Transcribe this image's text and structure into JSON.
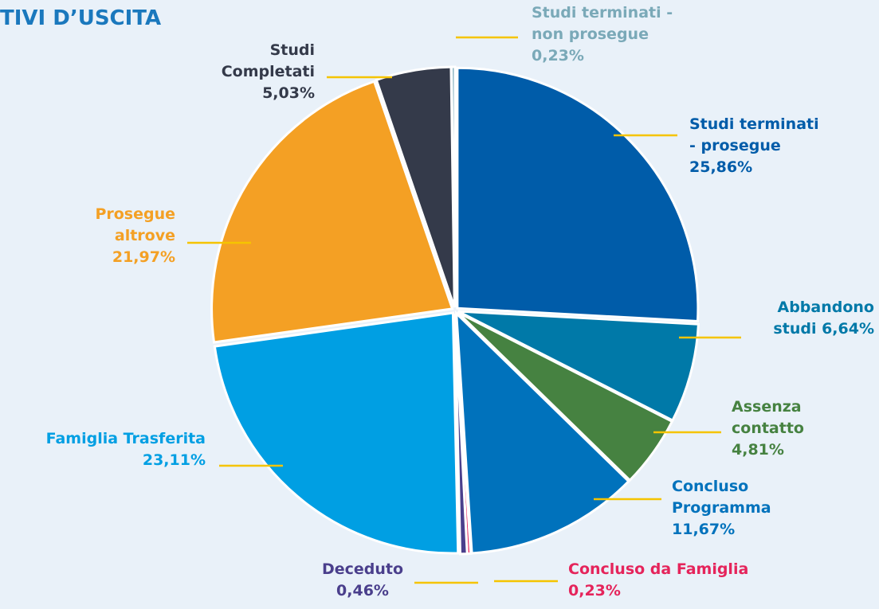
{
  "chart_data": {
    "type": "pie",
    "title": "TIVI D’USCITA",
    "categories": [
      "Studi terminati - prosegue",
      "Abbandono studi",
      "Assenza contatto",
      "Concluso Programma",
      "Concluso da Famiglia",
      "Deceduto",
      "Famiglia Trasferita",
      "Prosegue altrove",
      "Studi Completati",
      "Studi terminati - non prosegue"
    ],
    "values": [
      25.86,
      6.64,
      4.81,
      11.67,
      0.23,
      0.46,
      23.11,
      21.97,
      5.03,
      0.23
    ],
    "value_labels": [
      "25,86%",
      "6,64%",
      "4,81%",
      "11,67%",
      "0,23%",
      "0,46%",
      "23,11%",
      "21,97%",
      "5,03%",
      "0,23%"
    ],
    "colors": [
      "#005ca9",
      "#0079a8",
      "#468241",
      "#0072bc",
      "#e5245b",
      "#4a3f8c",
      "#009fe3",
      "#f4a024",
      "#343a4a",
      "#7aa9b8"
    ]
  }
}
